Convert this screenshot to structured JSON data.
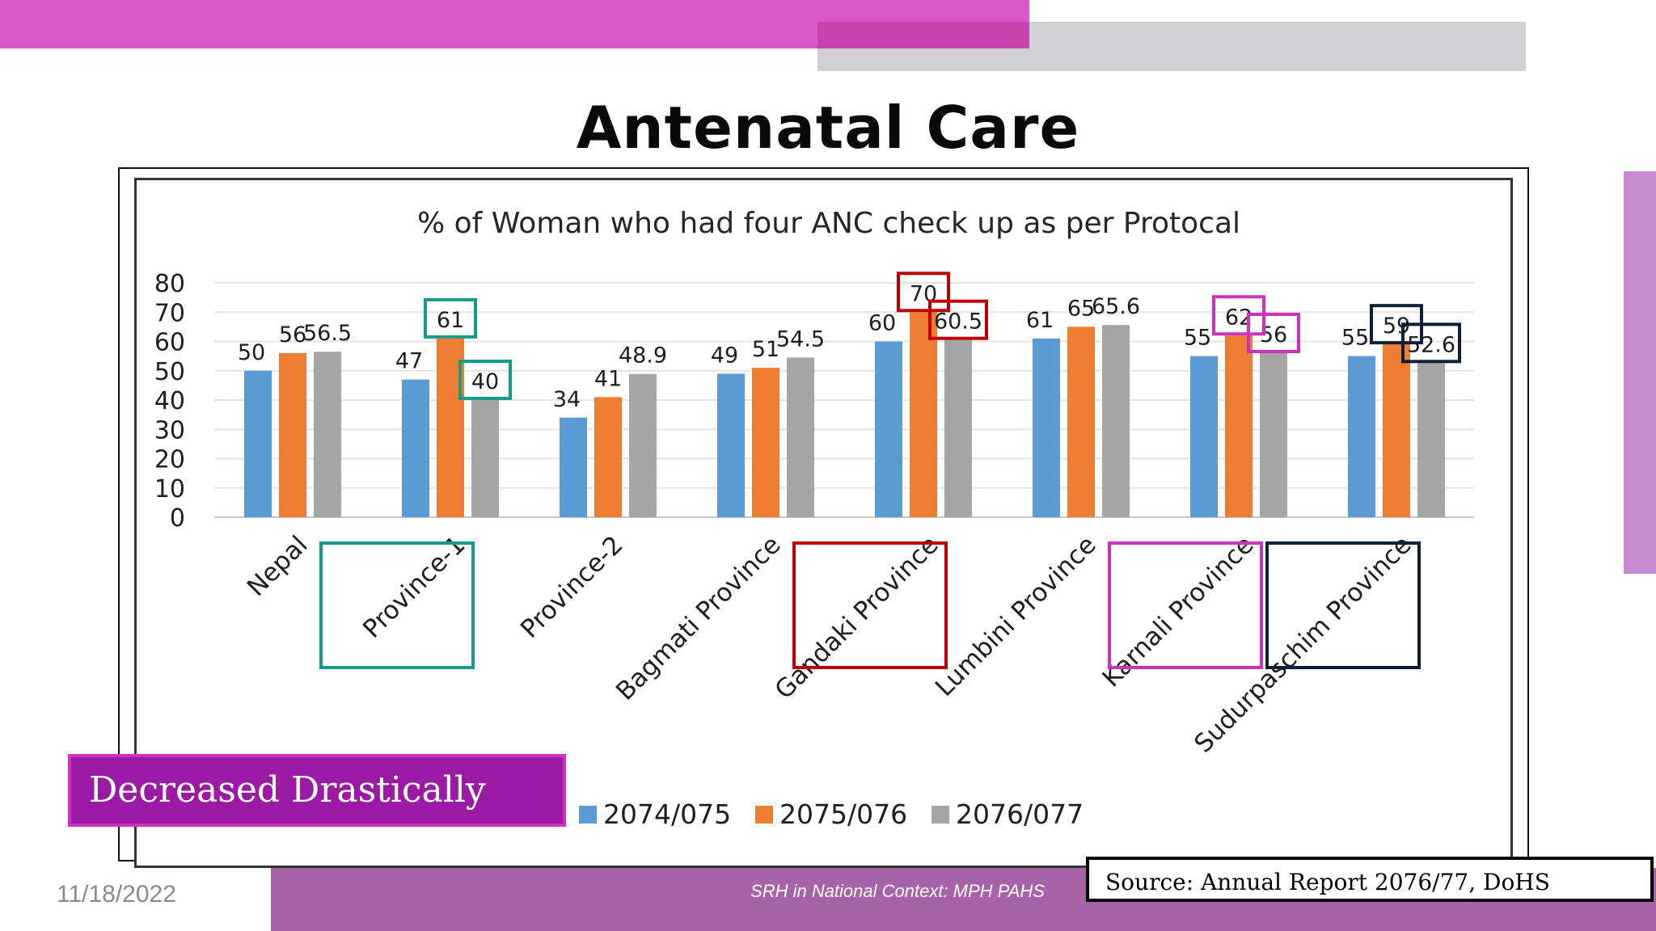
{
  "slide": {
    "title": "Antenatal Care",
    "callout": "Decreased Drastically",
    "footer": "SRH in National Context: MPH PAHS",
    "date": "11/18/2022",
    "source": "Source: Annual Report 2076/77, DoHS"
  },
  "colors": {
    "series": [
      "#5b9bd5",
      "#ed7d31",
      "#a5a5a5"
    ],
    "highlight_teal": "#169a8c",
    "highlight_red": "#c00000",
    "highlight_magenta": "#cc33bb",
    "highlight_navy": "#0f1f3a"
  },
  "chart_data": {
    "type": "bar",
    "title": "% of Woman who had four ANC check up as per Protocal",
    "categories": [
      "Nepal",
      "Province-1",
      "Province-2",
      "Bagmati Province",
      "Gandaki Province",
      "Lumbini Province",
      "Karnali Province",
      "Sudurpaschim Province"
    ],
    "series": [
      {
        "name": "2074/075",
        "values": [
          50,
          47,
          34,
          49,
          60,
          61,
          55,
          55
        ]
      },
      {
        "name": "2075/076",
        "values": [
          56,
          61,
          41,
          51,
          70,
          65,
          62,
          59
        ]
      },
      {
        "name": "2076/077",
        "values": [
          56.5,
          40,
          48.9,
          54.5,
          60.5,
          65.6,
          56,
          52.6
        ]
      }
    ],
    "yticks": [
      0,
      10,
      20,
      30,
      40,
      50,
      60,
      70,
      80
    ],
    "ylim": [
      0,
      80
    ],
    "grid": true,
    "legend": "bottom",
    "highlights": [
      {
        "category": "Province-1",
        "color": "teal",
        "series": [
          1,
          2
        ]
      },
      {
        "category": "Gandaki Province",
        "color": "red",
        "series": [
          1,
          2
        ]
      },
      {
        "category": "Karnali Province",
        "color": "magenta",
        "series": [
          1,
          2
        ]
      },
      {
        "category": "Sudurpaschim Province",
        "color": "navy",
        "series": [
          1,
          2
        ]
      }
    ]
  }
}
